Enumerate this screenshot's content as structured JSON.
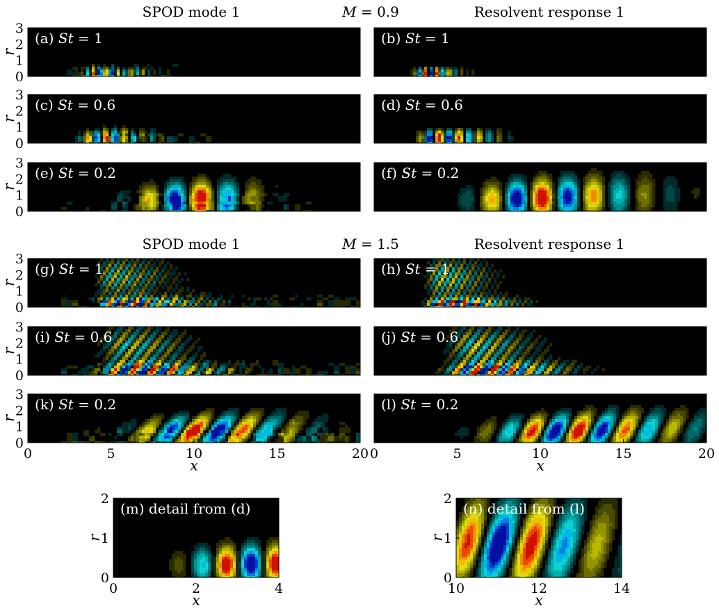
{
  "chart_data": [
    {
      "type": "heatmap",
      "group": "M = 0.9",
      "titles": {
        "left": "SPOD mode 1",
        "center_var": "M",
        "center_val": "0.9",
        "right": "Resolvent response 1"
      },
      "ylabel": "r",
      "ylim": [
        0,
        3
      ],
      "xlim": [
        0,
        20
      ],
      "panels": [
        {
          "id": "a",
          "label": "(a)",
          "st": "1",
          "kind": "SPOD",
          "wavelength": 0.75,
          "peak_x": 4.0,
          "extent": 9.0,
          "height": 0.5,
          "noise": 0.6,
          "grow": 0.6,
          "decay": 2.5,
          "amp": 0.95,
          "angle": 0
        },
        {
          "id": "b",
          "label": "(b)",
          "st": "1",
          "kind": "Resolvent",
          "wavelength": 0.72,
          "peak_x": 3.0,
          "extent": 8.0,
          "height": 0.5,
          "noise": 0.1,
          "grow": 0.6,
          "decay": 2.0,
          "amp": 1.0,
          "angle": 0
        },
        {
          "id": "c",
          "label": "(c)",
          "st": "0.6",
          "kind": "SPOD",
          "wavelength": 1.1,
          "peak_x": 4.0,
          "extent": 12.0,
          "height": 0.7,
          "noise": 0.6,
          "grow": 0.8,
          "decay": 3.0,
          "amp": 0.85,
          "angle": 0
        },
        {
          "id": "d",
          "label": "(d)",
          "st": "0.6",
          "kind": "Resolvent",
          "wavelength": 1.2,
          "peak_x": 3.5,
          "extent": 12.0,
          "height": 0.7,
          "noise": 0.1,
          "grow": 0.8,
          "decay": 3.5,
          "amp": 1.0,
          "angle": 0
        },
        {
          "id": "e",
          "label": "(e)",
          "st": "0.2",
          "kind": "SPOD",
          "wavelength": 3.2,
          "peak_x": 9.5,
          "extent": 17.0,
          "height": 1.2,
          "noise": 0.6,
          "grow": 3.0,
          "decay": 4.0,
          "amp": 1.0,
          "angle": 0
        },
        {
          "id": "f",
          "label": "(f)",
          "st": "0.2",
          "kind": "Resolvent",
          "wavelength": 3.1,
          "peak_x": 9.0,
          "extent": 20.0,
          "height": 1.3,
          "noise": 0.05,
          "grow": 3.0,
          "decay": 7.0,
          "amp": 1.0,
          "angle": 0
        }
      ]
    },
    {
      "type": "heatmap",
      "group": "M = 1.5",
      "titles": {
        "left": "SPOD mode 1",
        "center_var": "M",
        "center_val": "1.5",
        "right": "Resolvent response 1"
      },
      "ylabel": "r",
      "ylim": [
        0,
        3
      ],
      "xlim": [
        0,
        20
      ],
      "xlabel": "x",
      "xticks": [
        0,
        5,
        10,
        15,
        20
      ],
      "panels": [
        {
          "id": "g",
          "label": "(g)",
          "st": "1",
          "kind": "SPOD",
          "wavelength": 0.75,
          "peak_x": 5.0,
          "extent": 20.0,
          "height": 0.5,
          "noise": 0.7,
          "grow": 0.8,
          "decay": 5.0,
          "amp": 0.9,
          "angle": 0.55
        },
        {
          "id": "h",
          "label": "(h)",
          "st": "1",
          "kind": "Resolvent",
          "wavelength": 0.72,
          "peak_x": 4.0,
          "extent": 14.0,
          "height": 0.5,
          "noise": 0.1,
          "grow": 0.8,
          "decay": 4.0,
          "amp": 1.0,
          "angle": 0.5
        },
        {
          "id": "i",
          "label": "(i)",
          "st": "0.6",
          "kind": "SPOD",
          "wavelength": 1.15,
          "peak_x": 6.0,
          "extent": 20.0,
          "height": 0.6,
          "noise": 0.7,
          "grow": 1.5,
          "decay": 5.0,
          "amp": 0.95,
          "angle": 0.45
        },
        {
          "id": "j",
          "label": "(j)",
          "st": "0.6",
          "kind": "Resolvent",
          "wavelength": 1.1,
          "peak_x": 6.0,
          "extent": 20.0,
          "height": 0.6,
          "noise": 0.1,
          "grow": 1.5,
          "decay": 5.0,
          "amp": 1.0,
          "angle": 0.45
        },
        {
          "id": "k",
          "label": "(k)",
          "st": "0.2",
          "kind": "SPOD",
          "wavelength": 2.9,
          "peak_x": 10.0,
          "extent": 20.0,
          "height": 1.1,
          "noise": 0.7,
          "grow": 3.5,
          "decay": 6.0,
          "amp": 1.0,
          "angle": 0.15
        },
        {
          "id": "l",
          "label": "(l)",
          "st": "0.2",
          "kind": "Resolvent",
          "wavelength": 2.8,
          "peak_x": 11.0,
          "extent": 20.0,
          "height": 1.1,
          "noise": 0.1,
          "grow": 4.0,
          "decay": 8.0,
          "amp": 1.0,
          "angle": 0.1
        }
      ]
    },
    {
      "type": "heatmap",
      "group": "details",
      "ylabel": "r",
      "xlabel": "x",
      "panels": [
        {
          "id": "m",
          "label": "(m) detail from (d)",
          "kind": "Resolvent",
          "xlim": [
            0,
            4
          ],
          "xticks": [
            0,
            2,
            4
          ],
          "ylim": [
            0,
            2
          ],
          "yticks": [
            0,
            1,
            2
          ],
          "wavelength": 1.2,
          "peak_x": 3.0,
          "extent": 4.0,
          "height": 0.7,
          "noise": 0.05,
          "grow": 1.2,
          "decay": 4.0,
          "amp": 1.0,
          "angle": 0
        },
        {
          "id": "n",
          "label": "(n) detail from (l)",
          "kind": "Resolvent",
          "xlim": [
            10,
            14
          ],
          "xticks": [
            10,
            12,
            14
          ],
          "ylim": [
            0,
            2
          ],
          "yticks": [
            0,
            1,
            2
          ],
          "wavelength": 1.6,
          "peak_x": 10.7,
          "extent": 14.0,
          "height": 1.2,
          "noise": 0.05,
          "grow": 1.0,
          "decay": 3.0,
          "amp": 1.0,
          "angle": 0.1
        }
      ]
    }
  ]
}
